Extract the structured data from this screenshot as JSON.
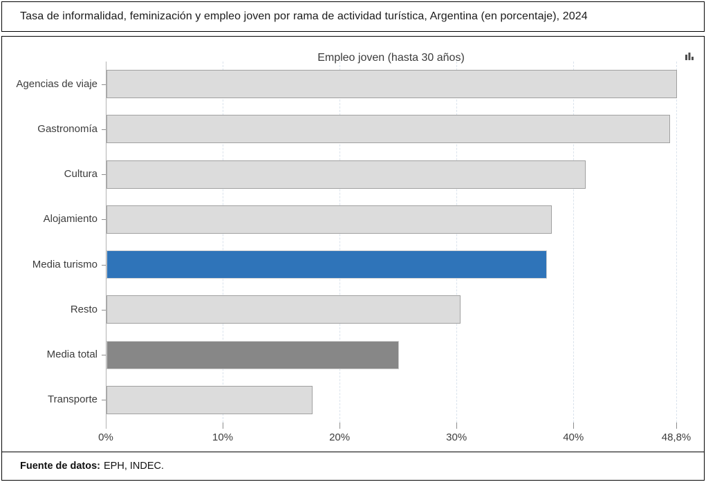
{
  "header": {
    "title": "Tasa de informalidad, feminización y empleo joven por rama de actividad turística, Argentina (en porcentaje), 2024"
  },
  "footer": {
    "label": "Fuente de datos:",
    "text": "EPH, INDEC."
  },
  "icons": {
    "chart_menu": "column-chart-icon"
  },
  "chart_data": {
    "type": "bar",
    "orientation": "horizontal",
    "title": "Empleo joven (hasta 30 años)",
    "categories": [
      "Agencias de viaje",
      "Gastronomía",
      "Cultura",
      "Alojamiento",
      "Media turismo",
      "Resto",
      "Media total",
      "Transporte"
    ],
    "values": [
      48.8,
      48.2,
      41.0,
      38.1,
      37.7,
      30.3,
      25.0,
      17.6
    ],
    "bar_roles": [
      "default",
      "default",
      "default",
      "default",
      "highlight_blue",
      "default",
      "highlight_gray",
      "default"
    ],
    "xlabel": "",
    "ylabel": "",
    "xlim": [
      0,
      48.8
    ],
    "x_ticks": [
      {
        "value": 0,
        "label": "0%"
      },
      {
        "value": 10,
        "label": "10%"
      },
      {
        "value": 20,
        "label": "20%"
      },
      {
        "value": 30,
        "label": "30%"
      },
      {
        "value": 40,
        "label": "40%"
      },
      {
        "value": 48.8,
        "label": "48,8%"
      }
    ],
    "grid": "vertical-dashed",
    "legend": "none",
    "colors": {
      "default_fill": "#dcdcdc",
      "default_border": "#a0a0a0",
      "highlight_blue_fill": "#2f74b9",
      "highlight_gray_fill": "#878787",
      "highlight_border": "#d2d2d2",
      "gridline": "#d9e2ec",
      "axis": "#b3b3b3",
      "text": "#3c3c3c"
    }
  }
}
